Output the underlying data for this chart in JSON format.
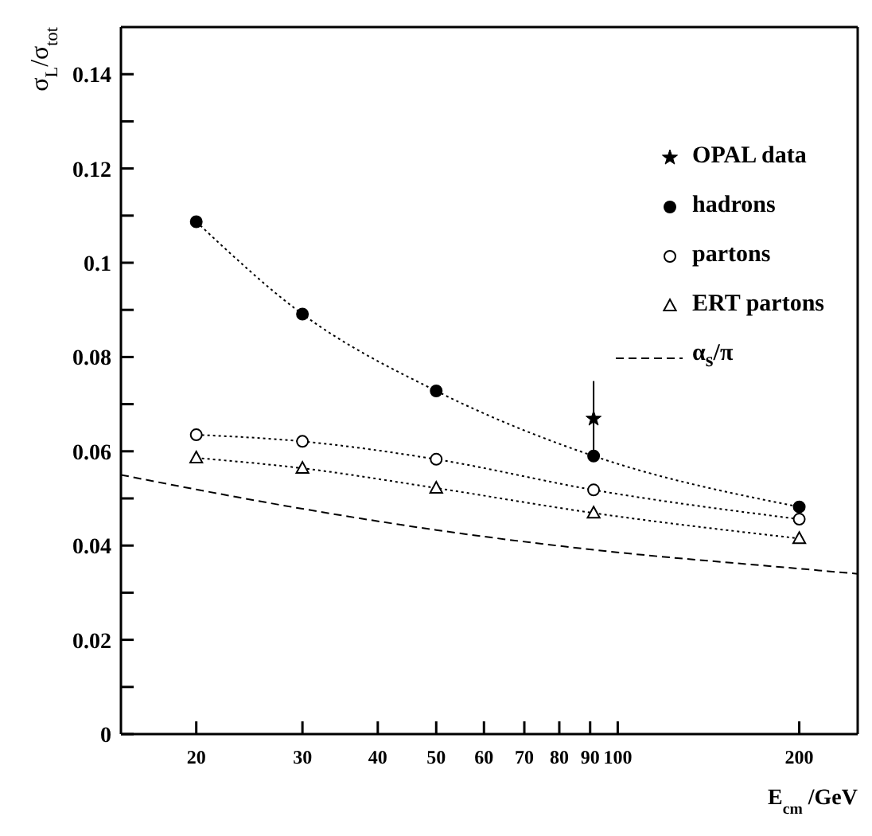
{
  "chart_data": {
    "type": "line",
    "xlabel": "E$_{cm}$ /GeV",
    "ylabel": "σ$_{L}$/σ$_{tot}$",
    "log": "x",
    "xlim": [
      15,
      250
    ],
    "xticks": [
      20,
      30,
      40,
      50,
      60,
      70,
      80,
      90,
      100,
      200
    ],
    "ylim": [
      0,
      0.15
    ],
    "yticks": [
      0,
      {
        "value": 0.01,
        "label": null
      },
      0.02,
      {
        "value": 0.03,
        "label": null
      },
      0.04,
      {
        "value": 0.05,
        "label": null
      },
      0.06,
      {
        "value": 0.07,
        "label": null
      },
      0.08,
      {
        "value": 0.09,
        "label": null
      },
      0.1,
      {
        "value": 0.11,
        "label": null
      },
      0.12,
      {
        "value": 0.13,
        "label": null
      },
      0.14
    ],
    "legend": "top right",
    "grid": false,
    "series": [
      {
        "name": "OPAL data",
        "type": "scatter",
        "marker": "star",
        "color": "#000000",
        "x": [
          91.2
        ],
        "values": [
          0.0669
        ],
        "errors": [
          0.008
        ]
      },
      {
        "name": "hadrons",
        "marker": "circle",
        "line_style": "dotted",
        "color": "#000000",
        "x": [
          20,
          30,
          50,
          91.2,
          200
        ],
        "values": [
          0.1087,
          0.0891,
          0.0728,
          0.059,
          0.0482
        ]
      },
      {
        "name": "partons",
        "marker": "circle",
        "line_style": "dotted",
        "color": "#000000",
        "x": [
          20,
          30,
          50,
          91.2,
          200
        ],
        "values": [
          0.0635,
          0.0621,
          0.0583,
          0.0518,
          0.0456
        ]
      },
      {
        "name": "ERT partons",
        "marker": "triangle",
        "line_style": "dotted",
        "color": "#000000",
        "x": [
          20,
          30,
          50,
          91.2,
          200
        ],
        "values": [
          0.0586,
          0.0564,
          0.0522,
          0.0469,
          0.0415
        ]
      },
      {
        "name": "α$_{s}$/π",
        "marker": "none",
        "line_style": "dashed",
        "color": "#000000",
        "x": [
          15,
          20,
          30,
          50,
          91.2,
          200,
          250
        ],
        "values": [
          0.055,
          0.0519,
          0.0478,
          0.0433,
          0.0391,
          0.0351,
          0.034
        ]
      }
    ]
  }
}
